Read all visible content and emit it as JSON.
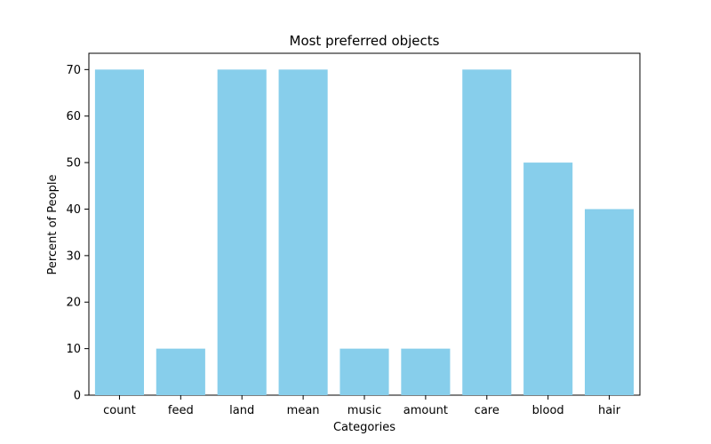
{
  "chart_data": {
    "type": "bar",
    "title": "Most preferred objects",
    "xlabel": "Categories",
    "ylabel": "Percent of People",
    "categories": [
      "count",
      "feed",
      "land",
      "mean",
      "music",
      "amount",
      "care",
      "blood",
      "hair"
    ],
    "values": [
      70,
      10,
      70,
      70,
      10,
      10,
      70,
      50,
      40
    ],
    "ylim": [
      0,
      73.5
    ],
    "yticks": [
      0,
      10,
      20,
      30,
      40,
      50,
      60,
      70
    ],
    "bar_color": "#87CEEB",
    "grid": false,
    "legend": "none"
  }
}
